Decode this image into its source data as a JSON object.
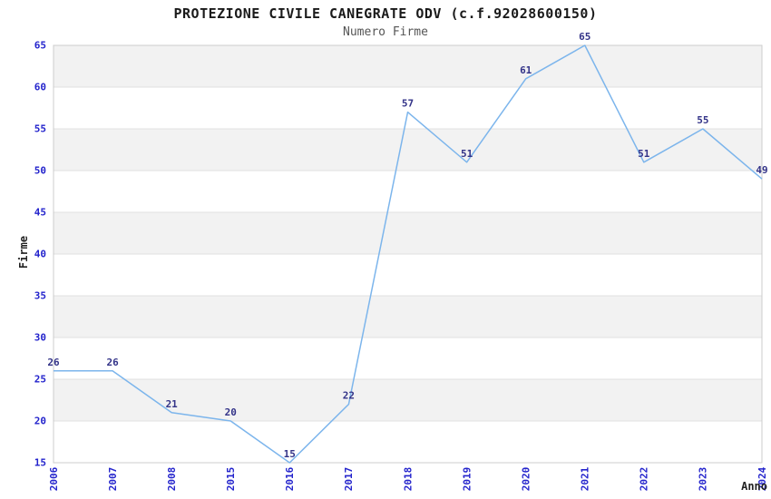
{
  "chart_data": {
    "type": "line",
    "title": "PROTEZIONE CIVILE CANEGRATE ODV (c.f.92028600150)",
    "subtitle": "Numero Firme",
    "xlabel": "Anno",
    "ylabel": "Firme",
    "categories": [
      "2006",
      "2007",
      "2008",
      "2015",
      "2016",
      "2017",
      "2018",
      "2019",
      "2020",
      "2021",
      "2022",
      "2023",
      "2024"
    ],
    "values": [
      26,
      26,
      21,
      20,
      15,
      22,
      57,
      51,
      61,
      65,
      51,
      55,
      49
    ],
    "ylim": [
      15,
      65
    ],
    "ytick_step": 5,
    "yticks": [
      15,
      20,
      25,
      30,
      35,
      40,
      45,
      50,
      55,
      60,
      65
    ],
    "grid": true,
    "legend": "none",
    "band_pattern": "alternate-gray-from-top",
    "data_labels": true,
    "colors": {
      "line": "#7cb5ec",
      "data_label": "#333388",
      "tick_label": "#2323cc",
      "band": "#f2f2f2",
      "gridline": "#e0e0e0",
      "plot_border": "#cccccc",
      "title": "#1a1a1a",
      "subtitle": "#555555",
      "axis_title": "#222222",
      "background": "#ffffff"
    }
  }
}
